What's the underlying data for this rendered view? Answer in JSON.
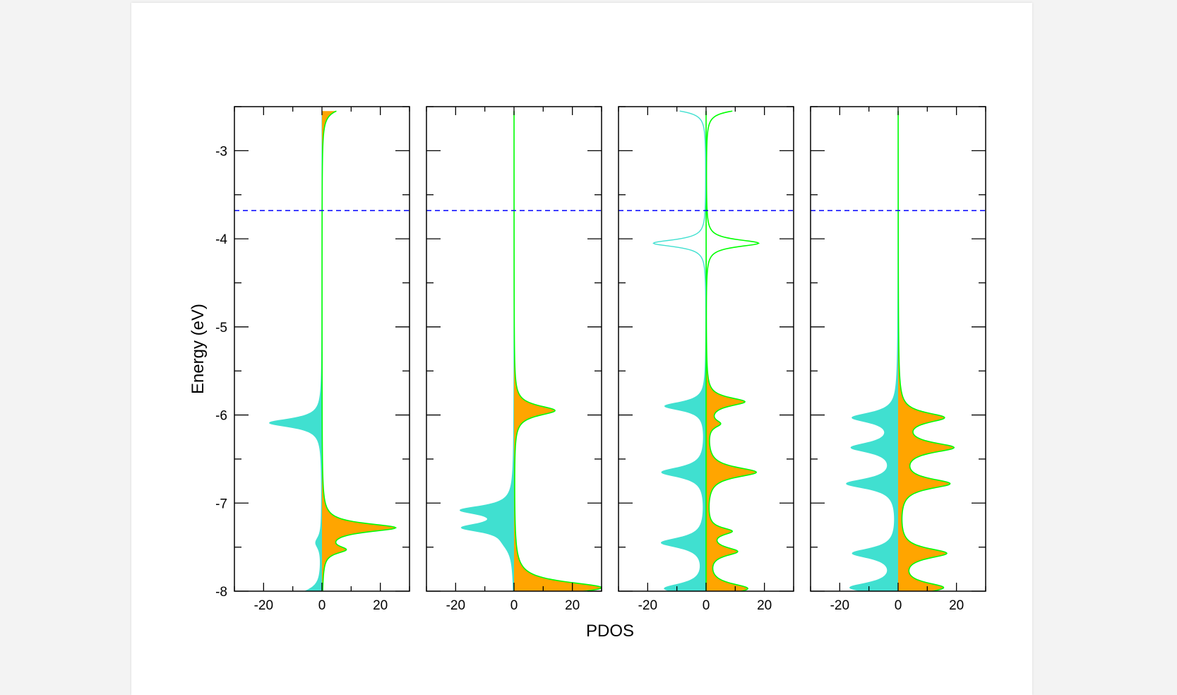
{
  "colors": {
    "negative_fill": "#40e0d0",
    "positive_fill": "#ffa500",
    "outline": "#00ff00",
    "fermi_line": "#0000ff",
    "frame": "#000000"
  },
  "chart_data": {
    "type": "area",
    "layout": "four horizontally stacked panels sharing the energy axis",
    "xlabel": "PDOS",
    "ylabel": "Energy (eV)",
    "xlim": [
      -30,
      30
    ],
    "ylim": [
      -8,
      -2.5
    ],
    "x_ticks": [
      "-20",
      "0",
      "20"
    ],
    "y_ticks": [
      "-3",
      "-4",
      "-5",
      "-6",
      "-7",
      "-8"
    ],
    "y_tick_values": [
      -3,
      -4,
      -5,
      -6,
      -7,
      -8
    ],
    "fermi_level": -3.68,
    "grid": false,
    "legend": "none",
    "panels": [
      {
        "spin_down_peaks": [
          {
            "center": -6.09,
            "height": -18,
            "width": 0.06
          },
          {
            "center": -7.45,
            "height": -2,
            "width": 0.08
          },
          {
            "center": -8.05,
            "height": -8,
            "width": 0.08
          }
        ],
        "spin_up_peaks": [
          {
            "center": -7.28,
            "height": 25,
            "width": 0.06
          },
          {
            "center": -7.53,
            "height": 7,
            "width": 0.05
          },
          {
            "center": -2.45,
            "height": 15,
            "width": 0.07
          }
        ],
        "spin_up_outline_only": false
      },
      {
        "spin_down_peaks": [
          {
            "center": -7.08,
            "height": -17,
            "width": 0.06
          },
          {
            "center": -7.28,
            "height": -16,
            "width": 0.06
          },
          {
            "center": -7.45,
            "height": -2,
            "width": 0.12
          }
        ],
        "spin_up_peaks": [
          {
            "center": -5.95,
            "height": 14,
            "width": 0.07
          },
          {
            "center": -7.96,
            "height": 30,
            "width": 0.08
          }
        ],
        "spin_up_outline_only": false
      },
      {
        "spin_down_peaks": [
          {
            "center": -5.9,
            "height": -14,
            "width": 0.06
          },
          {
            "center": -6.65,
            "height": -15,
            "width": 0.07
          },
          {
            "center": -7.45,
            "height": -15,
            "width": 0.07
          },
          {
            "center": -7.97,
            "height": -14,
            "width": 0.07
          },
          {
            "center": -4.05,
            "height": -18,
            "width": 0.05,
            "outline_only": true
          },
          {
            "center": -2.5,
            "height": -18,
            "width": 0.05,
            "outline_only": true
          }
        ],
        "spin_up_peaks": [
          {
            "center": -5.85,
            "height": 13,
            "width": 0.06
          },
          {
            "center": -6.1,
            "height": 4,
            "width": 0.05
          },
          {
            "center": -6.65,
            "height": 17,
            "width": 0.07
          },
          {
            "center": -7.32,
            "height": 8,
            "width": 0.05
          },
          {
            "center": -7.55,
            "height": 10,
            "width": 0.06
          },
          {
            "center": -7.97,
            "height": 14,
            "width": 0.07
          },
          {
            "center": -4.05,
            "height": 18,
            "width": 0.05,
            "outline_only": true
          },
          {
            "center": -2.5,
            "height": 18,
            "width": 0.05,
            "outline_only": true
          }
        ],
        "spin_up_outline_only": false
      },
      {
        "spin_down_peaks": [
          {
            "center": -6.03,
            "height": -15,
            "width": 0.07
          },
          {
            "center": -6.37,
            "height": -15,
            "width": 0.07
          },
          {
            "center": -6.78,
            "height": -17,
            "width": 0.07
          },
          {
            "center": -7.57,
            "height": -15,
            "width": 0.07
          },
          {
            "center": -7.96,
            "height": -16,
            "width": 0.07
          }
        ],
        "spin_up_peaks": [
          {
            "center": -6.03,
            "height": 15,
            "width": 0.07
          },
          {
            "center": -6.37,
            "height": 18,
            "width": 0.07
          },
          {
            "center": -6.78,
            "height": 17,
            "width": 0.07
          },
          {
            "center": -7.57,
            "height": 16,
            "width": 0.07
          },
          {
            "center": -7.96,
            "height": 15,
            "width": 0.07
          }
        ],
        "spin_up_outline_only": false
      }
    ]
  }
}
